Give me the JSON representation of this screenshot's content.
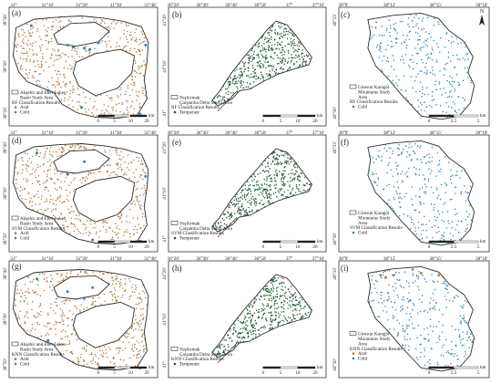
{
  "grid": {
    "columns": [
      {
        "x_ticks": [
          "31°",
          "31°10'",
          "31°20'",
          "31°30'",
          "31°40'"
        ],
        "y_ticks": [
          "38°40'",
          "38°30'",
          "38°20'"
        ]
      },
      {
        "x_ticks": [
          "36°20'",
          "36°30'",
          "36°40'",
          "36°50'",
          "37°",
          "37°10'"
        ],
        "y_ticks": [
          "41°20'",
          "41°10'",
          "41°"
        ]
      },
      {
        "x_ticks": [
          "38°9'",
          "38°12'",
          "38°15'",
          "38°18'"
        ],
        "y_ticks": [
          "40°33'",
          "40°30'"
        ]
      }
    ]
  },
  "colors": {
    "arid": "#b8753a",
    "cold": "#2b86b4",
    "temperate": "#1f5a33",
    "outline": "#2a2a2a",
    "fill": "#ffffff"
  },
  "panels": [
    {
      "letter": "(a)",
      "col": 0,
      "row": 0,
      "legend": [
        "Akşehir and Eber Lakes",
        "Basin Study Area",
        "RF  Classification Results"
      ],
      "classes": [
        {
          "label": "Arid",
          "key": "arid"
        },
        {
          "label": "Cold",
          "key": "cold"
        }
      ],
      "scale": [
        "0",
        "5",
        "10",
        "20"
      ],
      "unit": "km"
    },
    {
      "letter": "(b)",
      "col": 1,
      "row": 0,
      "legend": [
        "Yeşilırmak",
        "Çarşamba Delta Study Area",
        "RF Classification Results"
      ],
      "classes": [
        {
          "label": "Temperate",
          "key": "temperate"
        }
      ],
      "scale": [
        "0",
        "5",
        "10",
        "20"
      ],
      "unit": "km"
    },
    {
      "letter": "(c)",
      "col": 2,
      "row": 0,
      "legend": [
        "Giresun Karagöl",
        "Mountains Study",
        "Area",
        "RF  Classification Results"
      ],
      "classes": [
        {
          "label": "Cold",
          "key": "cold"
        }
      ],
      "scale": [
        "0",
        "2.5",
        "5"
      ],
      "unit": "km"
    },
    {
      "letter": "(d)",
      "col": 0,
      "row": 1,
      "legend": [
        "Akşehir and Eber Lakes",
        "Basin Study Area",
        "SVM Classification Results"
      ],
      "classes": [
        {
          "label": "Arid",
          "key": "arid"
        },
        {
          "label": "Cold",
          "key": "cold"
        }
      ],
      "scale": [
        "0",
        "5",
        "10",
        "20"
      ],
      "unit": "km"
    },
    {
      "letter": "(e)",
      "col": 1,
      "row": 1,
      "legend": [
        "Yeşilırmak",
        "Çarşamba Delta Study Area",
        "SVM Classification Results"
      ],
      "classes": [
        {
          "label": "Temperate",
          "key": "temperate"
        }
      ],
      "scale": [
        "0",
        "5",
        "10",
        "20"
      ],
      "unit": "km"
    },
    {
      "letter": "(f)",
      "col": 2,
      "row": 1,
      "legend": [
        "Giresun Karagöl",
        "Mountains Study",
        "Area",
        "SVM Classification Results"
      ],
      "classes": [
        {
          "label": "Cold",
          "key": "cold"
        }
      ],
      "scale": [
        "0",
        "2.5",
        "5"
      ],
      "unit": "km"
    },
    {
      "letter": "(g)",
      "col": 0,
      "row": 2,
      "legend": [
        "Akşehir and Eber Lakes",
        "Basin Study Area",
        "KNN Classification Results"
      ],
      "classes": [
        {
          "label": "Arid",
          "key": "arid"
        },
        {
          "label": "Cold",
          "key": "cold"
        }
      ],
      "scale": [
        "0",
        "5",
        "10",
        "20"
      ],
      "unit": "km"
    },
    {
      "letter": "(h)",
      "col": 1,
      "row": 2,
      "legend": [
        "Yeşilırmak",
        "Çarşamba Delta Study Area",
        "KNN Classification Results"
      ],
      "classes": [
        {
          "label": "Temperate",
          "key": "temperate"
        }
      ],
      "scale": [
        "0",
        "5",
        "10",
        "20"
      ],
      "unit": "km"
    },
    {
      "letter": "(i)",
      "col": 2,
      "row": 2,
      "legend": [
        "Giresun Karagöl",
        "Mountains Study",
        "Area",
        "KNN Classification Results"
      ],
      "classes": [
        {
          "label": "Arid",
          "key": "arid"
        },
        {
          "label": "Cold",
          "key": "cold"
        }
      ],
      "scale": [
        "0",
        "2.5",
        "5"
      ],
      "unit": "km"
    }
  ],
  "north_label": "N"
}
